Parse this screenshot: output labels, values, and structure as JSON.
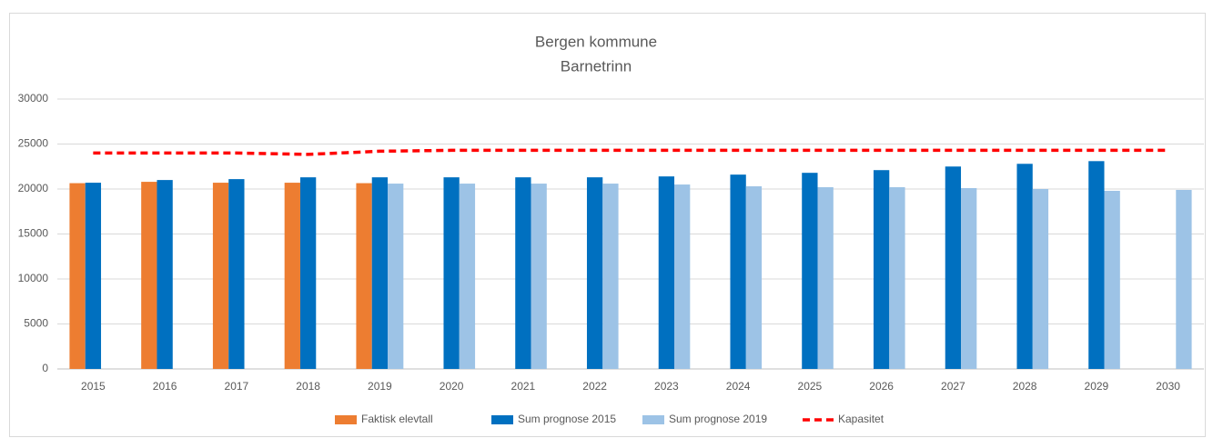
{
  "chart_data": {
    "type": "bar",
    "title": "Bergen kommune",
    "subtitle": "Barnetrinn",
    "categories": [
      "2015",
      "2016",
      "2017",
      "2018",
      "2019",
      "2020",
      "2021",
      "2022",
      "2023",
      "2024",
      "2025",
      "2026",
      "2027",
      "2028",
      "2029",
      "2030"
    ],
    "series": [
      {
        "name": "Faktisk elevtall",
        "kind": "bar",
        "color": "#ED7D31",
        "values": [
          20650,
          20800,
          20700,
          20700,
          20650,
          null,
          null,
          null,
          null,
          null,
          null,
          null,
          null,
          null,
          null,
          null
        ]
      },
      {
        "name": "Sum prognose 2015",
        "kind": "bar",
        "color": "#0070C0",
        "values": [
          20700,
          21000,
          21100,
          21300,
          21300,
          21300,
          21300,
          21300,
          21400,
          21600,
          21800,
          22100,
          22500,
          22800,
          23100,
          null
        ]
      },
      {
        "name": "Sum prognose 2019",
        "kind": "bar",
        "color": "#9DC3E6",
        "values": [
          null,
          null,
          null,
          null,
          20600,
          20600,
          20600,
          20600,
          20500,
          20300,
          20200,
          20200,
          20100,
          20000,
          19800,
          19900
        ]
      },
      {
        "name": "Kapasitet",
        "kind": "line",
        "dashed": true,
        "color": "#FF0000",
        "values": [
          24000,
          24000,
          24000,
          23850,
          24200,
          24300,
          24300,
          24300,
          24300,
          24300,
          24300,
          24300,
          24300,
          24300,
          24300,
          24300
        ]
      }
    ],
    "ylim": [
      0,
      30000
    ],
    "yticks": [
      0,
      5000,
      10000,
      15000,
      20000,
      25000,
      30000
    ],
    "grid": true,
    "legend": "bottom"
  }
}
